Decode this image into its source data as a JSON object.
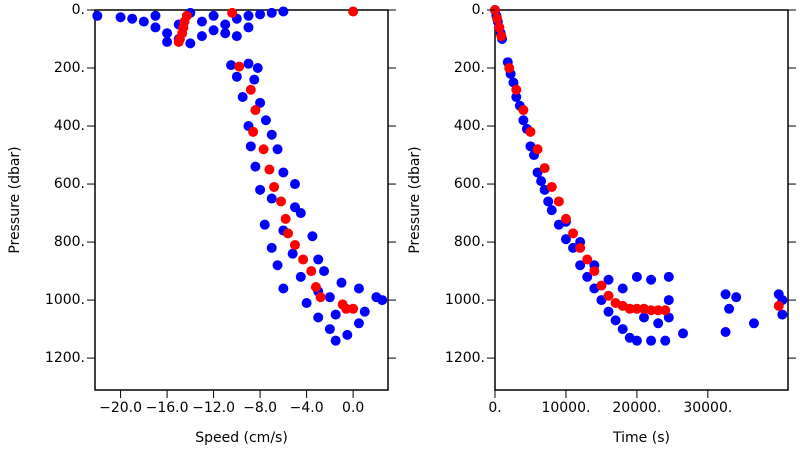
{
  "chart_data": [
    {
      "type": "scatter",
      "xlabel": "Speed (cm/s)",
      "ylabel": "Pressure (dbar)",
      "inverted_y": true,
      "xlim": [
        -22.2,
        3.0
      ],
      "ylim": [
        0,
        1310
      ],
      "xticks": [
        {
          "value": -20,
          "label": "−20.0"
        },
        {
          "value": -16,
          "label": "−16.0"
        },
        {
          "value": -12,
          "label": "−12.0"
        },
        {
          "value": -8,
          "label": "−8.0"
        },
        {
          "value": -4,
          "label": "−4.0"
        },
        {
          "value": 0,
          "label": "0.0"
        }
      ],
      "yticks": [
        {
          "value": 0,
          "label": "0."
        },
        {
          "value": 200,
          "label": "200."
        },
        {
          "value": 400,
          "label": "400."
        },
        {
          "value": 600,
          "label": "600."
        },
        {
          "value": 800,
          "label": "800."
        },
        {
          "value": 1000,
          "label": "1000."
        },
        {
          "value": 1200,
          "label": "1200."
        }
      ],
      "series": [
        {
          "color": "#0000ff",
          "x": [
            -22,
            -20,
            -19,
            -18,
            -17,
            -16,
            -15,
            -16,
            -14,
            -13,
            -12,
            -11,
            -10,
            -9,
            -8,
            -7,
            -6,
            -12,
            -14,
            -17,
            -15,
            -13,
            -11,
            -10,
            -9,
            -10.5,
            -9,
            -8.2,
            -10,
            -8.5,
            -9.5,
            -8,
            -7.5,
            -9,
            -7,
            -8.8,
            -6.5,
            -8.4,
            -6,
            -5,
            -8,
            -7,
            -5,
            -4.5,
            -7.6,
            -6,
            -3.5,
            -7,
            -5.2,
            -3,
            -6.5,
            -2.5,
            -4.5,
            -6,
            -1,
            -3,
            -2,
            0.5,
            2,
            -4,
            -1.5,
            1,
            -3,
            -2,
            -0.5,
            -1.5,
            0.5,
            2.5
          ],
          "values": [
            20,
            25,
            30,
            40,
            60,
            80,
            100,
            110,
            115,
            90,
            70,
            50,
            30,
            20,
            15,
            10,
            5,
            20,
            10,
            20,
            50,
            40,
            80,
            90,
            60,
            190,
            185,
            200,
            230,
            240,
            300,
            320,
            380,
            400,
            430,
            470,
            480,
            540,
            560,
            600,
            620,
            650,
            680,
            700,
            740,
            760,
            780,
            820,
            840,
            860,
            880,
            900,
            920,
            960,
            940,
            970,
            990,
            960,
            990,
            1010,
            1050,
            1040,
            1060,
            1100,
            1120,
            1140,
            1080,
            1000
          ]
        },
        {
          "color": "#ff0000",
          "x": [
            0,
            -14.3,
            -14.5,
            -14.6,
            -14.7,
            -14.9,
            -15.0,
            -10.4,
            -9.8,
            -8.8,
            -8.4,
            -8.6,
            -7.7,
            -7.2,
            -6.8,
            -6.2,
            -5.8,
            -5.6,
            -5.0,
            -4.3,
            -3.6,
            -3.2,
            -2.8,
            -0.9,
            -0.6,
            0
          ],
          "values": [
            5,
            20,
            40,
            60,
            80,
            100,
            110,
            10,
            195,
            275,
            345,
            420,
            480,
            550,
            610,
            660,
            720,
            770,
            810,
            860,
            900,
            955,
            990,
            1015,
            1030,
            1030
          ]
        }
      ]
    },
    {
      "type": "scatter",
      "xlabel": "Time (s)",
      "ylabel": "Pressure (dbar)",
      "inverted_y": true,
      "xlim": [
        0,
        41300
      ],
      "ylim": [
        0,
        1310
      ],
      "xticks": [
        {
          "value": 0,
          "label": "0."
        },
        {
          "value": 10000,
          "label": "10000."
        },
        {
          "value": 20000,
          "label": "20000."
        },
        {
          "value": 30000,
          "label": "30000."
        }
      ],
      "yticks": [
        {
          "value": 0,
          "label": "0."
        },
        {
          "value": 200,
          "label": "200."
        },
        {
          "value": 400,
          "label": "400."
        },
        {
          "value": 600,
          "label": "600."
        },
        {
          "value": 800,
          "label": "800."
        },
        {
          "value": 1000,
          "label": "1000."
        },
        {
          "value": 1200,
          "label": "1200."
        }
      ],
      "series": [
        {
          "color": "#0000ff",
          "x": [
            0,
            200,
            400,
            600,
            800,
            1000,
            1800,
            2200,
            2600,
            3000,
            3500,
            4000,
            4500,
            5000,
            5500,
            6000,
            6500,
            7000,
            7500,
            8000,
            9000,
            10000,
            10000,
            11000,
            12000,
            12000,
            13000,
            14000,
            14000,
            15000,
            16000,
            16000,
            17000,
            18000,
            18000,
            19000,
            20000,
            20000,
            21000,
            22000,
            22000,
            23000,
            24000,
            24500,
            24500,
            24500,
            26500,
            32500,
            32500,
            33000,
            34000,
            36500,
            40000,
            40500,
            40500
          ],
          "values": [
            0,
            20,
            40,
            60,
            80,
            100,
            180,
            220,
            250,
            300,
            330,
            380,
            410,
            470,
            500,
            560,
            590,
            620,
            660,
            690,
            740,
            790,
            730,
            820,
            880,
            800,
            920,
            960,
            880,
            1000,
            1040,
            930,
            1070,
            1100,
            960,
            1130,
            1140,
            920,
            1060,
            1140,
            930,
            1080,
            1140,
            920,
            1000,
            1060,
            1115,
            980,
            1110,
            1030,
            990,
            1080,
            980,
            1050,
            1000
          ]
        },
        {
          "color": "#ff0000",
          "x": [
            0,
            300,
            600,
            900,
            2000,
            3000,
            4000,
            5000,
            6000,
            7000,
            8000,
            9000,
            10000,
            11000,
            12000,
            13000,
            14000,
            15000,
            16000,
            17000,
            18000,
            19000,
            20000,
            21000,
            22000,
            23000,
            24000,
            40000
          ],
          "values": [
            0,
            30,
            60,
            90,
            200,
            275,
            345,
            420,
            480,
            545,
            610,
            660,
            720,
            770,
            820,
            860,
            900,
            950,
            985,
            1010,
            1020,
            1030,
            1030,
            1030,
            1035,
            1035,
            1035,
            1020
          ]
        }
      ]
    }
  ]
}
